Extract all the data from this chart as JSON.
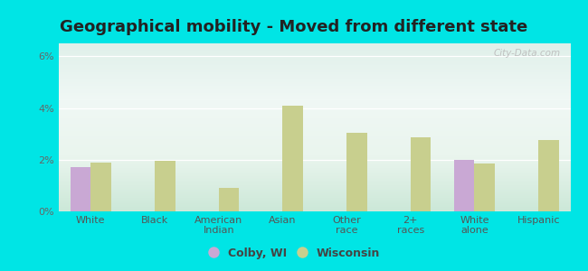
{
  "title": "Geographical mobility - Moved from different state",
  "categories": [
    "White",
    "Black",
    "American\nIndian",
    "Asian",
    "Other\nrace",
    "2+\nraces",
    "White\nalone",
    "Hispanic"
  ],
  "colby_values": [
    1.7,
    0.0,
    0.0,
    0.0,
    0.0,
    0.0,
    2.0,
    0.0
  ],
  "wisconsin_values": [
    1.9,
    1.95,
    0.9,
    4.1,
    3.05,
    2.85,
    1.85,
    2.75
  ],
  "colby_color": "#c9a8d4",
  "wisconsin_color": "#c8cf8e",
  "bg_color_top": "#e8f5f0",
  "bg_color_bottom": "#d8ecd4",
  "outer_background": "#00e5e5",
  "ylim": [
    0,
    6.5
  ],
  "yticks": [
    0,
    2,
    4,
    6
  ],
  "ytick_labels": [
    "0%",
    "2%",
    "4%",
    "6%"
  ],
  "bar_width": 0.32,
  "legend_colby": "Colby, WI",
  "legend_wisconsin": "Wisconsin",
  "title_fontsize": 13,
  "tick_fontsize": 8,
  "legend_fontsize": 9
}
